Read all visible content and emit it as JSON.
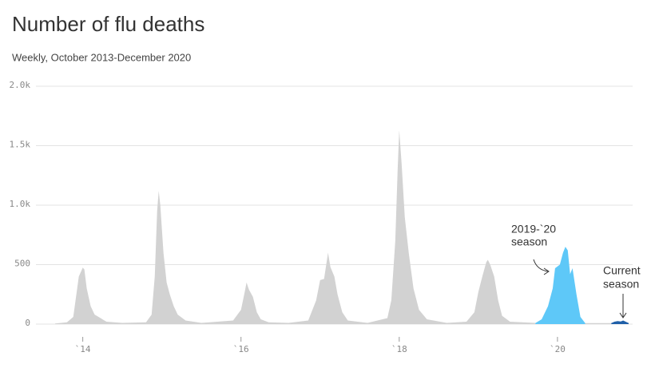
{
  "chart_data": {
    "type": "area",
    "title": "Number of flu deaths",
    "subtitle": "Weekly, October 2013-December 2020",
    "xlim": [
      2013.6,
      2020.95
    ],
    "xticks": [
      {
        "value": 2014,
        "label": "`14"
      },
      {
        "value": 2016,
        "label": "`16"
      },
      {
        "value": 2018,
        "label": "`18"
      },
      {
        "value": 2020,
        "label": "`20"
      }
    ],
    "ylim": [
      0,
      2000
    ],
    "yticks": [
      0,
      500,
      {
        "value": 1000,
        "label": "1.0k"
      },
      {
        "value": 1500,
        "label": "1.5k"
      },
      {
        "value": 2000,
        "label": "2.0k"
      }
    ],
    "grid": true,
    "series": [
      {
        "color": "#d2d2d2",
        "x": [
          2013.65,
          2013.8,
          2013.88,
          2013.95,
          2014.0,
          2014.02,
          2014.05,
          2014.1,
          2014.15,
          2014.2,
          2014.3,
          2014.5,
          2014.8,
          2014.87,
          2014.91,
          2014.94,
          2014.96,
          2014.98,
          2015.02,
          2015.06,
          2015.1,
          2015.15,
          2015.2,
          2015.3,
          2015.5,
          2015.9,
          2016.0,
          2016.05,
          2016.07,
          2016.1,
          2016.15,
          2016.2,
          2016.25,
          2016.35,
          2016.6,
          2016.85,
          2016.95,
          2017.0,
          2017.05,
          2017.1,
          2017.13,
          2017.18,
          2017.22,
          2017.28,
          2017.35,
          2017.6,
          2017.85,
          2017.9,
          2017.95,
          2017.98,
          2018.0,
          2018.03,
          2018.07,
          2018.12,
          2018.18,
          2018.25,
          2018.35,
          2018.6,
          2018.85,
          2018.95,
          2019.0,
          2019.05,
          2019.1,
          2019.12,
          2019.15,
          2019.2,
          2019.25,
          2019.3,
          2019.4,
          2019.72,
          2020.0,
          2020.35,
          2020.68
        ],
        "values": [
          5,
          15,
          60,
          400,
          475,
          460,
          300,
          150,
          80,
          60,
          20,
          10,
          15,
          80,
          400,
          950,
          1120,
          1000,
          600,
          350,
          250,
          150,
          80,
          30,
          10,
          30,
          120,
          280,
          350,
          290,
          230,
          100,
          40,
          15,
          10,
          30,
          200,
          370,
          380,
          600,
          480,
          400,
          250,
          100,
          30,
          10,
          50,
          200,
          700,
          1300,
          1630,
          1350,
          900,
          600,
          300,
          120,
          40,
          10,
          20,
          100,
          270,
          400,
          520,
          540,
          500,
          400,
          200,
          70,
          20,
          10,
          null,
          8,
          8
        ]
      },
      {
        "color": "#5ec8f8",
        "x": [
          2019.72,
          2019.8,
          2019.88,
          2019.94,
          2019.97,
          2020.03,
          2020.07,
          2020.1,
          2020.13,
          2020.16,
          2020.19,
          2020.24,
          2020.29,
          2020.35
        ],
        "values": [
          8,
          40,
          150,
          300,
          470,
          500,
          600,
          650,
          620,
          420,
          470,
          250,
          60,
          8
        ]
      },
      {
        "color": "#1f5fa8",
        "x": [
          2020.68,
          2020.72,
          2020.76,
          2020.8,
          2020.83,
          2020.87,
          2020.9
        ],
        "values": [
          8,
          20,
          25,
          22,
          30,
          18,
          8
        ]
      }
    ],
    "annotations": [
      {
        "lines": [
          "2019-`20",
          "season"
        ]
      },
      {
        "lines": [
          "Current",
          "season"
        ]
      }
    ]
  }
}
